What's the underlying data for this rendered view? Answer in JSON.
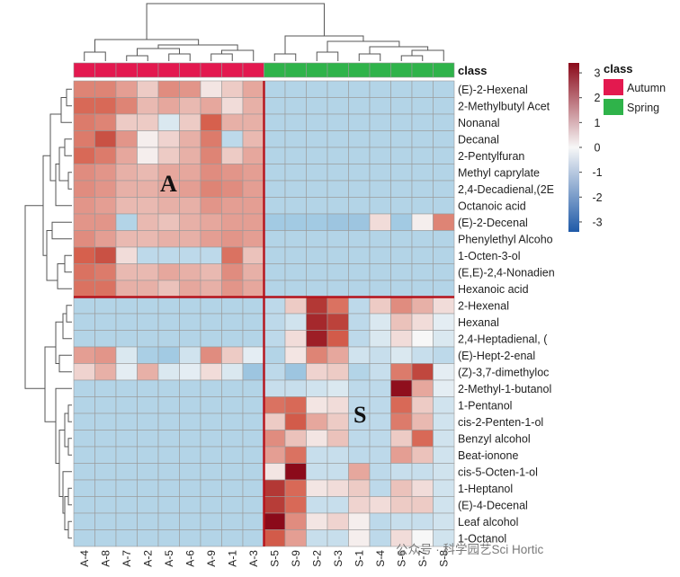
{
  "chart_data": {
    "type": "heatmap",
    "annotation_title": "class",
    "class_legend": {
      "title": "class",
      "items": [
        {
          "name": "Autumn",
          "color": "#e3194f"
        },
        {
          "name": "Spring",
          "color": "#2fb34a"
        }
      ]
    },
    "colorbar": {
      "ticks": [
        3,
        2,
        1,
        0,
        -1,
        -2,
        -3
      ],
      "range": [
        -3.4,
        3.4
      ],
      "low_color": "#1f5aa8",
      "mid_color": "#f7f7f7",
      "high_color": "#8b0a1a"
    },
    "columns": [
      "A-4",
      "A-8",
      "A-7",
      "A-2",
      "A-5",
      "A-6",
      "A-9",
      "A-1",
      "A-3",
      "S-5",
      "S-9",
      "S-2",
      "S-3",
      "S-1",
      "S-4",
      "S-6",
      "S-7",
      "S-8"
    ],
    "column_class": [
      "Autumn",
      "Autumn",
      "Autumn",
      "Autumn",
      "Autumn",
      "Autumn",
      "Autumn",
      "Autumn",
      "Autumn",
      "Spring",
      "Spring",
      "Spring",
      "Spring",
      "Spring",
      "Spring",
      "Spring",
      "Spring",
      "Spring"
    ],
    "rows": [
      "(E)-2-Hexenal",
      "2-Methylbutyl Acet",
      "Nonanal",
      "Decanal",
      "2-Pentylfuran",
      "Methyl caprylate",
      "2,4-Decadienal,(2E",
      "Octanoic acid",
      "(E)-2-Decenal",
      "Phenylethyl Alcoho",
      "1-Octen-3-ol",
      "(E,E)-2,4-Nonadien",
      "Hexanoic acid",
      "2-Hexenal",
      "Hexanal",
      "2,4-Heptadienal, (",
      "(E)-Hept-2-enal",
      "(Z)-3,7-dimethyloc",
      "2-Methyl-1-butanol",
      "1-Pentanol",
      "cis-2-Penten-1-ol",
      "Benzyl alcohol",
      "Beat-ionone",
      "cis-5-Octen-1-ol",
      "1-Heptanol",
      "(E)-4-Decenal",
      "Leaf alcohol",
      "1-Octanol"
    ],
    "values": [
      [
        1.3,
        1.3,
        1.0,
        0.5,
        1.2,
        1.1,
        0.2,
        0.5,
        0.9,
        -0.7,
        -0.7,
        -0.7,
        -0.7,
        -0.7,
        -0.7,
        -0.7,
        -0.7,
        -0.7
      ],
      [
        1.6,
        1.6,
        1.3,
        0.7,
        0.9,
        0.7,
        0.9,
        0.3,
        0.8,
        -0.7,
        -0.7,
        -0.7,
        -0.7,
        -0.7,
        -0.7,
        -0.7,
        -0.7,
        -0.7
      ],
      [
        1.4,
        1.3,
        0.5,
        0.5,
        -0.3,
        0.5,
        1.7,
        0.8,
        0.8,
        -0.7,
        -0.7,
        -0.7,
        -0.7,
        -0.7,
        -0.7,
        -0.7,
        -0.7,
        -0.7
      ],
      [
        1.4,
        2.0,
        1.1,
        0.1,
        0.4,
        0.8,
        1.4,
        -0.6,
        0.7,
        -0.7,
        -0.7,
        -0.7,
        -0.7,
        -0.7,
        -0.7,
        -0.7,
        -0.7,
        -0.7
      ],
      [
        1.6,
        1.4,
        0.9,
        0.1,
        0.5,
        0.8,
        1.3,
        0.5,
        0.9,
        -0.7,
        -0.7,
        -0.7,
        -0.7,
        -0.7,
        -0.7,
        -0.7,
        -0.7,
        -0.7
      ],
      [
        1.2,
        1.1,
        0.8,
        0.7,
        0.9,
        0.9,
        1.2,
        1.1,
        1.0,
        -0.7,
        -0.7,
        -0.7,
        -0.7,
        -0.7,
        -0.7,
        -0.7,
        -0.7,
        -0.7
      ],
      [
        1.2,
        1.1,
        0.8,
        0.8,
        0.9,
        1.0,
        1.3,
        1.2,
        1.0,
        -0.7,
        -0.7,
        -0.7,
        -0.7,
        -0.7,
        -0.7,
        -0.7,
        -0.7,
        -0.7
      ],
      [
        1.1,
        1.0,
        0.7,
        0.7,
        0.8,
        0.8,
        1.1,
        1.0,
        1.0,
        -0.7,
        -0.7,
        -0.7,
        -0.7,
        -0.7,
        -0.7,
        -0.7,
        -0.7,
        -0.7
      ],
      [
        1.1,
        1.1,
        -0.7,
        0.7,
        0.6,
        0.8,
        0.9,
        1.0,
        1.0,
        -0.9,
        -0.9,
        -0.9,
        -1.0,
        -1.0,
        0.3,
        -0.9,
        0.1,
        1.3
      ],
      [
        1.2,
        1.0,
        0.7,
        0.7,
        0.8,
        0.8,
        1.0,
        1.1,
        1.0,
        -0.7,
        -0.7,
        -0.7,
        -0.7,
        -0.7,
        -0.7,
        -0.7,
        -0.7,
        -0.7
      ],
      [
        1.7,
        2.0,
        0.3,
        -0.6,
        -0.6,
        -0.6,
        -0.6,
        1.5,
        0.6,
        -0.7,
        -0.7,
        -0.7,
        -0.7,
        -0.7,
        -0.7,
        -0.7,
        -0.7,
        -0.7
      ],
      [
        1.5,
        1.4,
        0.7,
        0.7,
        0.9,
        0.8,
        0.7,
        1.2,
        0.8,
        -0.7,
        -0.7,
        -0.7,
        -0.7,
        -0.7,
        -0.7,
        -0.7,
        -0.7,
        -0.7
      ],
      [
        1.5,
        1.5,
        0.8,
        0.8,
        0.6,
        0.9,
        0.8,
        1.1,
        0.9,
        -0.7,
        -0.7,
        -0.7,
        -0.7,
        -0.7,
        -0.7,
        -0.7,
        -0.7,
        -0.7
      ],
      [
        -0.7,
        -0.7,
        -0.7,
        -0.7,
        -0.7,
        -0.7,
        -0.7,
        -0.7,
        -0.7,
        -0.6,
        0.5,
        2.5,
        1.5,
        -0.6,
        0.5,
        1.2,
        0.8,
        0.3
      ],
      [
        -0.7,
        -0.7,
        -0.7,
        -0.7,
        -0.7,
        -0.7,
        -0.7,
        -0.7,
        -0.7,
        -0.6,
        -0.4,
        2.8,
        2.3,
        -0.6,
        -0.3,
        0.6,
        0.3,
        -0.2
      ],
      [
        -0.7,
        -0.7,
        -0.7,
        -0.7,
        -0.7,
        -0.7,
        -0.7,
        -0.7,
        -0.7,
        -0.6,
        0.3,
        3.0,
        1.8,
        -0.6,
        -0.3,
        0.3,
        0.0,
        -0.3
      ],
      [
        1.0,
        1.1,
        -0.3,
        -0.8,
        -0.9,
        -0.4,
        1.2,
        0.5,
        -0.2,
        -0.7,
        0.2,
        1.3,
        0.9,
        -0.4,
        -0.5,
        -0.3,
        -0.5,
        -0.6
      ],
      [
        0.4,
        0.8,
        -0.2,
        0.8,
        -0.3,
        -0.2,
        0.3,
        -0.3,
        -1.0,
        -0.6,
        -1.0,
        0.4,
        0.5,
        -0.7,
        -0.5,
        1.4,
        2.2,
        -0.2
      ],
      [
        -0.7,
        -0.7,
        -0.7,
        -0.7,
        -0.7,
        -0.7,
        -0.7,
        -0.7,
        -0.7,
        -0.5,
        -0.5,
        -0.4,
        -0.3,
        -0.6,
        -0.6,
        3.3,
        0.9,
        -0.2
      ],
      [
        -0.7,
        -0.7,
        -0.7,
        -0.7,
        -0.7,
        -0.7,
        -0.7,
        -0.7,
        -0.7,
        1.5,
        1.6,
        0.2,
        0.3,
        -0.6,
        -0.6,
        1.6,
        0.5,
        -0.4
      ],
      [
        -0.7,
        -0.7,
        -0.7,
        -0.7,
        -0.7,
        -0.7,
        -0.7,
        -0.7,
        -0.7,
        0.5,
        1.8,
        0.9,
        0.5,
        -0.6,
        -0.6,
        1.4,
        0.7,
        -0.4
      ],
      [
        -0.7,
        -0.7,
        -0.7,
        -0.7,
        -0.7,
        -0.7,
        -0.7,
        -0.7,
        -0.7,
        1.2,
        0.6,
        0.2,
        0.6,
        -0.6,
        -0.6,
        0.5,
        1.6,
        -0.4
      ],
      [
        -0.7,
        -0.7,
        -0.7,
        -0.7,
        -0.7,
        -0.7,
        -0.7,
        -0.7,
        -0.7,
        1.0,
        1.5,
        -0.5,
        -0.5,
        -0.6,
        -0.6,
        1.0,
        0.6,
        -0.4
      ],
      [
        -0.7,
        -0.7,
        -0.7,
        -0.7,
        -0.7,
        -0.7,
        -0.7,
        -0.7,
        -0.7,
        0.2,
        3.4,
        -0.5,
        -0.5,
        0.9,
        -0.6,
        -0.5,
        -0.5,
        -0.4
      ],
      [
        -0.7,
        -0.7,
        -0.7,
        -0.7,
        -0.7,
        -0.7,
        -0.7,
        -0.7,
        -0.7,
        2.5,
        1.6,
        0.2,
        0.3,
        0.5,
        -0.6,
        0.6,
        0.3,
        -0.4
      ],
      [
        -0.7,
        -0.7,
        -0.7,
        -0.7,
        -0.7,
        -0.7,
        -0.7,
        -0.7,
        -0.7,
        2.4,
        1.6,
        -0.5,
        -0.5,
        0.4,
        0.3,
        0.5,
        0.5,
        -0.4
      ],
      [
        -0.7,
        -0.7,
        -0.7,
        -0.7,
        -0.7,
        -0.7,
        -0.7,
        -0.7,
        -0.7,
        3.4,
        1.2,
        0.2,
        0.4,
        0.1,
        -0.6,
        -0.5,
        -0.5,
        -0.4
      ],
      [
        -0.7,
        -0.7,
        -0.7,
        -0.7,
        -0.7,
        -0.7,
        -0.7,
        -0.7,
        -0.7,
        1.8,
        1.0,
        -0.5,
        -0.5,
        0.1,
        -0.6,
        0.3,
        0.0,
        -0.4
      ]
    ],
    "cluster_labels": [
      "A",
      "S"
    ],
    "row_split_after": 13,
    "col_split_after": 9,
    "divider_color": "#b5121b"
  },
  "watermark": "公众号 · 科学园艺Sci Hortic"
}
